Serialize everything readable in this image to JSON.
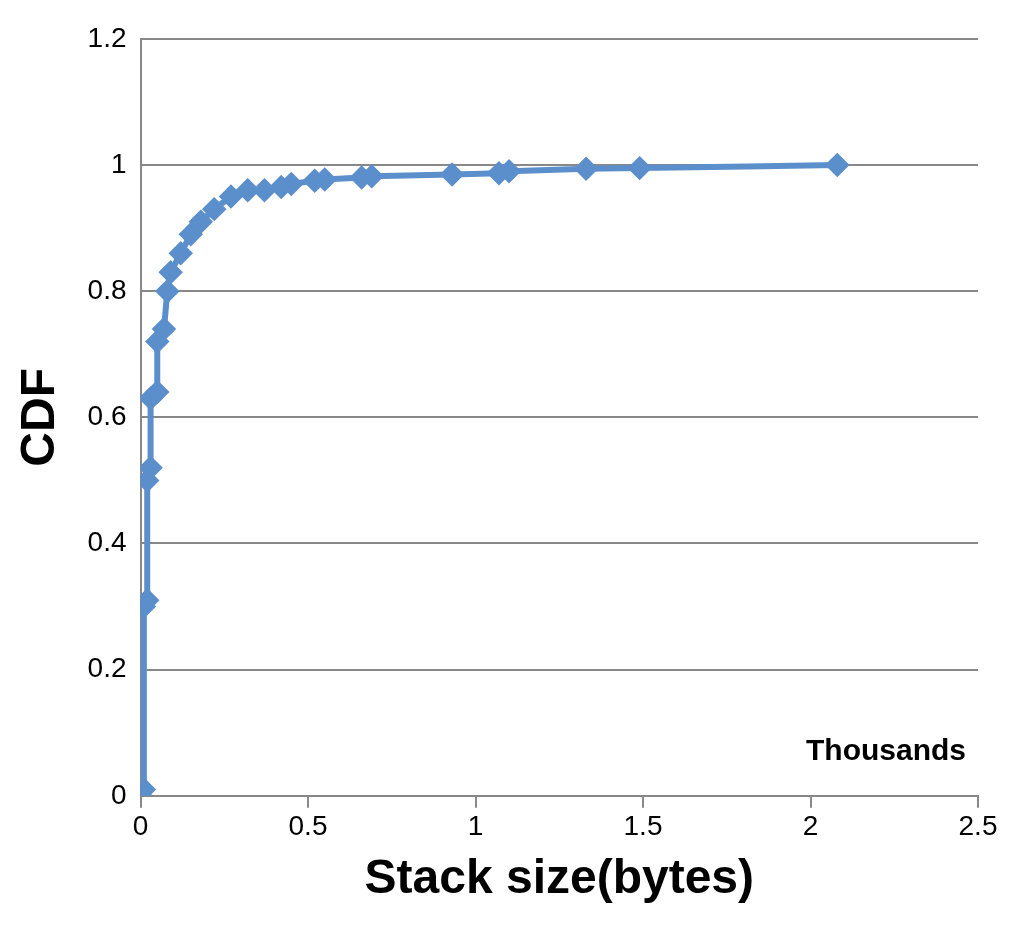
{
  "chart_data": {
    "type": "line",
    "xlabel": "Stack size(bytes)",
    "ylabel": "CDF",
    "annotations": [
      "Thousands"
    ],
    "x": [
      0,
      0.01,
      0.01,
      0.02,
      0.02,
      0.03,
      0.03,
      0.05,
      0.05,
      0.07,
      0.08,
      0.09,
      0.12,
      0.15,
      0.18,
      0.22,
      0.27,
      0.32,
      0.37,
      0.42,
      0.45,
      0.52,
      0.55,
      0.66,
      0.69,
      0.93,
      1.07,
      1.1,
      1.33,
      1.49,
      2.08
    ],
    "series": [
      {
        "color": "#5b8fcc",
        "values": [
          0,
          0.01,
          0.3,
          0.31,
          0.5,
          0.52,
          0.63,
          0.64,
          0.72,
          0.74,
          0.8,
          0.83,
          0.86,
          0.89,
          0.91,
          0.93,
          0.95,
          0.96,
          0.96,
          0.965,
          0.97,
          0.975,
          0.977,
          0.98,
          0.982,
          0.985,
          0.987,
          0.99,
          0.994,
          0.995,
          1.0
        ]
      }
    ],
    "xlim": [
      0,
      2.5
    ],
    "xticks": [
      0,
      0.5,
      1,
      1.5,
      2,
      2.5
    ],
    "ylim": [
      0,
      1.2
    ],
    "yticks": [
      0,
      0.2,
      0.4,
      0.6,
      0.8,
      1,
      1.2
    ],
    "grid": "y",
    "legend": false,
    "marker": "diamond",
    "line_style": "solid"
  }
}
